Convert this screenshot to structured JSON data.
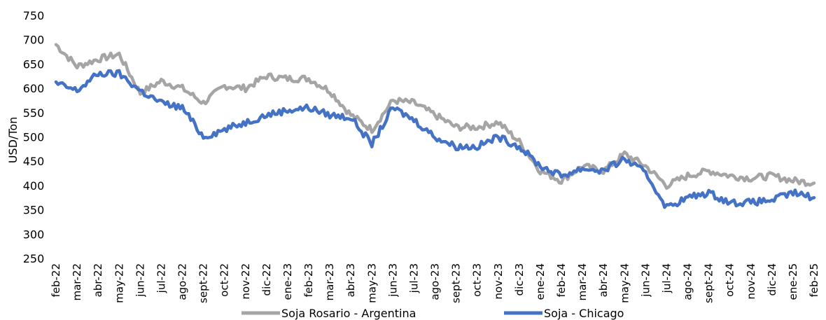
{
  "chart_data": {
    "type": "line",
    "title": "",
    "ylabel": "USD/Ton",
    "xlabel": "",
    "ylim": [
      250,
      750
    ],
    "yticks": [
      250,
      300,
      350,
      400,
      450,
      500,
      550,
      600,
      650,
      700,
      750
    ],
    "grid": false,
    "legend_position": "bottom",
    "categories": [
      "feb-22",
      "mar-22",
      "abr-22",
      "may-22",
      "jun-22",
      "jul-22",
      "ago-22",
      "sept-22",
      "oct-22",
      "nov-22",
      "dic-22",
      "ene-23",
      "feb-23",
      "mar-23",
      "abr-23",
      "may-23",
      "jun-23",
      "jul-23",
      "ago-23",
      "sept-23",
      "oct-23",
      "nov-23",
      "dic-23",
      "ene-24",
      "feb-24",
      "mar-24",
      "abr-24",
      "may-24",
      "jun-24",
      "jul-24",
      "ago-24",
      "sept-24",
      "oct-24",
      "nov-24",
      "dic-24",
      "ene-25",
      "feb-25"
    ],
    "series": [
      {
        "name": "Soja Rosario - Argentina",
        "color": "#A5A5A5",
        "values": [
          690,
          645,
          660,
          670,
          590,
          615,
          600,
          570,
          605,
          600,
          625,
          620,
          620,
          595,
          545,
          515,
          575,
          570,
          545,
          520,
          520,
          530,
          490,
          430,
          410,
          440,
          430,
          465,
          440,
          400,
          420,
          430,
          420,
          415,
          420,
          410,
          405
        ]
      },
      {
        "name": "Soja - Chicago",
        "color": "#4472C4",
        "values": [
          610,
          595,
          630,
          630,
          595,
          570,
          560,
          500,
          515,
          530,
          545,
          555,
          560,
          545,
          540,
          485,
          560,
          535,
          500,
          480,
          480,
          500,
          480,
          440,
          420,
          435,
          430,
          455,
          425,
          355,
          375,
          385,
          365,
          365,
          370,
          385,
          375
        ]
      }
    ]
  }
}
